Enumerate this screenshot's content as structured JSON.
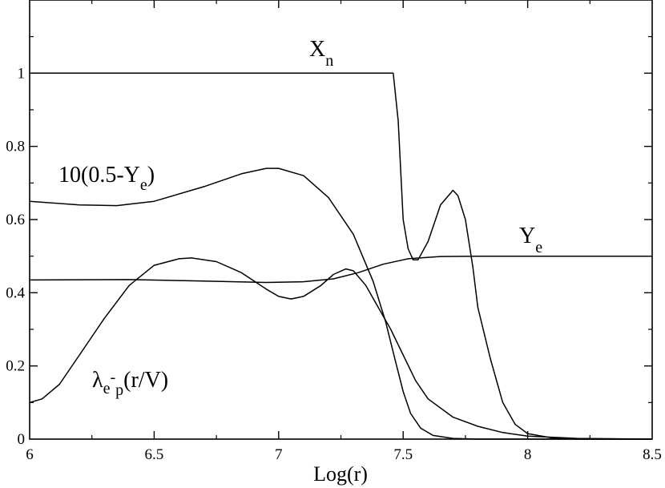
{
  "chart_data": {
    "type": "line",
    "xlabel": "Log(r)",
    "ylabel": "",
    "xlim": [
      6,
      8.5
    ],
    "ylim": [
      0,
      1.0
    ],
    "x_ticks": [
      "6",
      "6.5",
      "7",
      "7.5",
      "8",
      "8.5"
    ],
    "y_ticks": [
      "0",
      "0.2",
      "0.4",
      "0.6",
      "0.8",
      "1"
    ],
    "grid": false,
    "series": [
      {
        "key": "xn",
        "points": [
          [
            6.0,
            1.0
          ],
          [
            7.46,
            1.0
          ],
          [
            7.48,
            0.87
          ],
          [
            7.5,
            0.6
          ],
          [
            7.52,
            0.52
          ],
          [
            7.54,
            0.49
          ],
          [
            7.56,
            0.49
          ],
          [
            7.6,
            0.54
          ],
          [
            7.65,
            0.64
          ],
          [
            7.7,
            0.68
          ],
          [
            7.72,
            0.665
          ],
          [
            7.75,
            0.6
          ],
          [
            7.78,
            0.47
          ],
          [
            7.8,
            0.36
          ],
          [
            7.85,
            0.22
          ],
          [
            7.9,
            0.1
          ],
          [
            7.95,
            0.04
          ],
          [
            8.0,
            0.015
          ],
          [
            8.1,
            0.003
          ],
          [
            8.2,
            0.0
          ],
          [
            8.5,
            0.0
          ]
        ]
      },
      {
        "key": "ye10",
        "points": [
          [
            6.0,
            0.65
          ],
          [
            6.2,
            0.64
          ],
          [
            6.35,
            0.638
          ],
          [
            6.5,
            0.65
          ],
          [
            6.7,
            0.69
          ],
          [
            6.85,
            0.725
          ],
          [
            6.95,
            0.74
          ],
          [
            7.0,
            0.74
          ],
          [
            7.1,
            0.72
          ],
          [
            7.2,
            0.66
          ],
          [
            7.3,
            0.56
          ],
          [
            7.38,
            0.43
          ],
          [
            7.43,
            0.32
          ],
          [
            7.47,
            0.21
          ],
          [
            7.5,
            0.13
          ],
          [
            7.53,
            0.07
          ],
          [
            7.57,
            0.03
          ],
          [
            7.62,
            0.01
          ],
          [
            7.7,
            0.002
          ],
          [
            7.8,
            0.0
          ],
          [
            8.5,
            0.0
          ]
        ]
      },
      {
        "key": "ye",
        "points": [
          [
            6.0,
            0.435
          ],
          [
            6.4,
            0.436
          ],
          [
            6.7,
            0.432
          ],
          [
            6.95,
            0.428
          ],
          [
            7.1,
            0.43
          ],
          [
            7.22,
            0.438
          ],
          [
            7.32,
            0.455
          ],
          [
            7.42,
            0.478
          ],
          [
            7.52,
            0.493
          ],
          [
            7.65,
            0.499
          ],
          [
            7.8,
            0.5
          ],
          [
            8.5,
            0.5
          ]
        ]
      },
      {
        "key": "lambda",
        "points": [
          [
            6.0,
            0.1
          ],
          [
            6.05,
            0.11
          ],
          [
            6.12,
            0.15
          ],
          [
            6.2,
            0.23
          ],
          [
            6.3,
            0.33
          ],
          [
            6.4,
            0.42
          ],
          [
            6.5,
            0.475
          ],
          [
            6.6,
            0.493
          ],
          [
            6.65,
            0.495
          ],
          [
            6.75,
            0.485
          ],
          [
            6.85,
            0.455
          ],
          [
            6.95,
            0.41
          ],
          [
            7.0,
            0.39
          ],
          [
            7.05,
            0.383
          ],
          [
            7.1,
            0.39
          ],
          [
            7.17,
            0.42
          ],
          [
            7.22,
            0.45
          ],
          [
            7.27,
            0.465
          ],
          [
            7.3,
            0.46
          ],
          [
            7.35,
            0.42
          ],
          [
            7.4,
            0.36
          ],
          [
            7.45,
            0.3
          ],
          [
            7.5,
            0.23
          ],
          [
            7.55,
            0.16
          ],
          [
            7.6,
            0.11
          ],
          [
            7.7,
            0.06
          ],
          [
            7.8,
            0.035
          ],
          [
            7.9,
            0.018
          ],
          [
            8.0,
            0.008
          ],
          [
            8.2,
            0.002
          ],
          [
            8.5,
            0.0
          ]
        ]
      }
    ],
    "annotations": {
      "xn": {
        "main": "X",
        "sub": "n"
      },
      "ye10": {
        "main": "10(0.5-Y",
        "sub": "e",
        "tail": ")"
      },
      "ye": {
        "main": "Y",
        "sub": "e"
      },
      "lambda": {
        "main": "λ",
        "sub1": "e",
        "sup": "-",
        "sub2": "p",
        "tail": "(r/V)"
      }
    }
  }
}
